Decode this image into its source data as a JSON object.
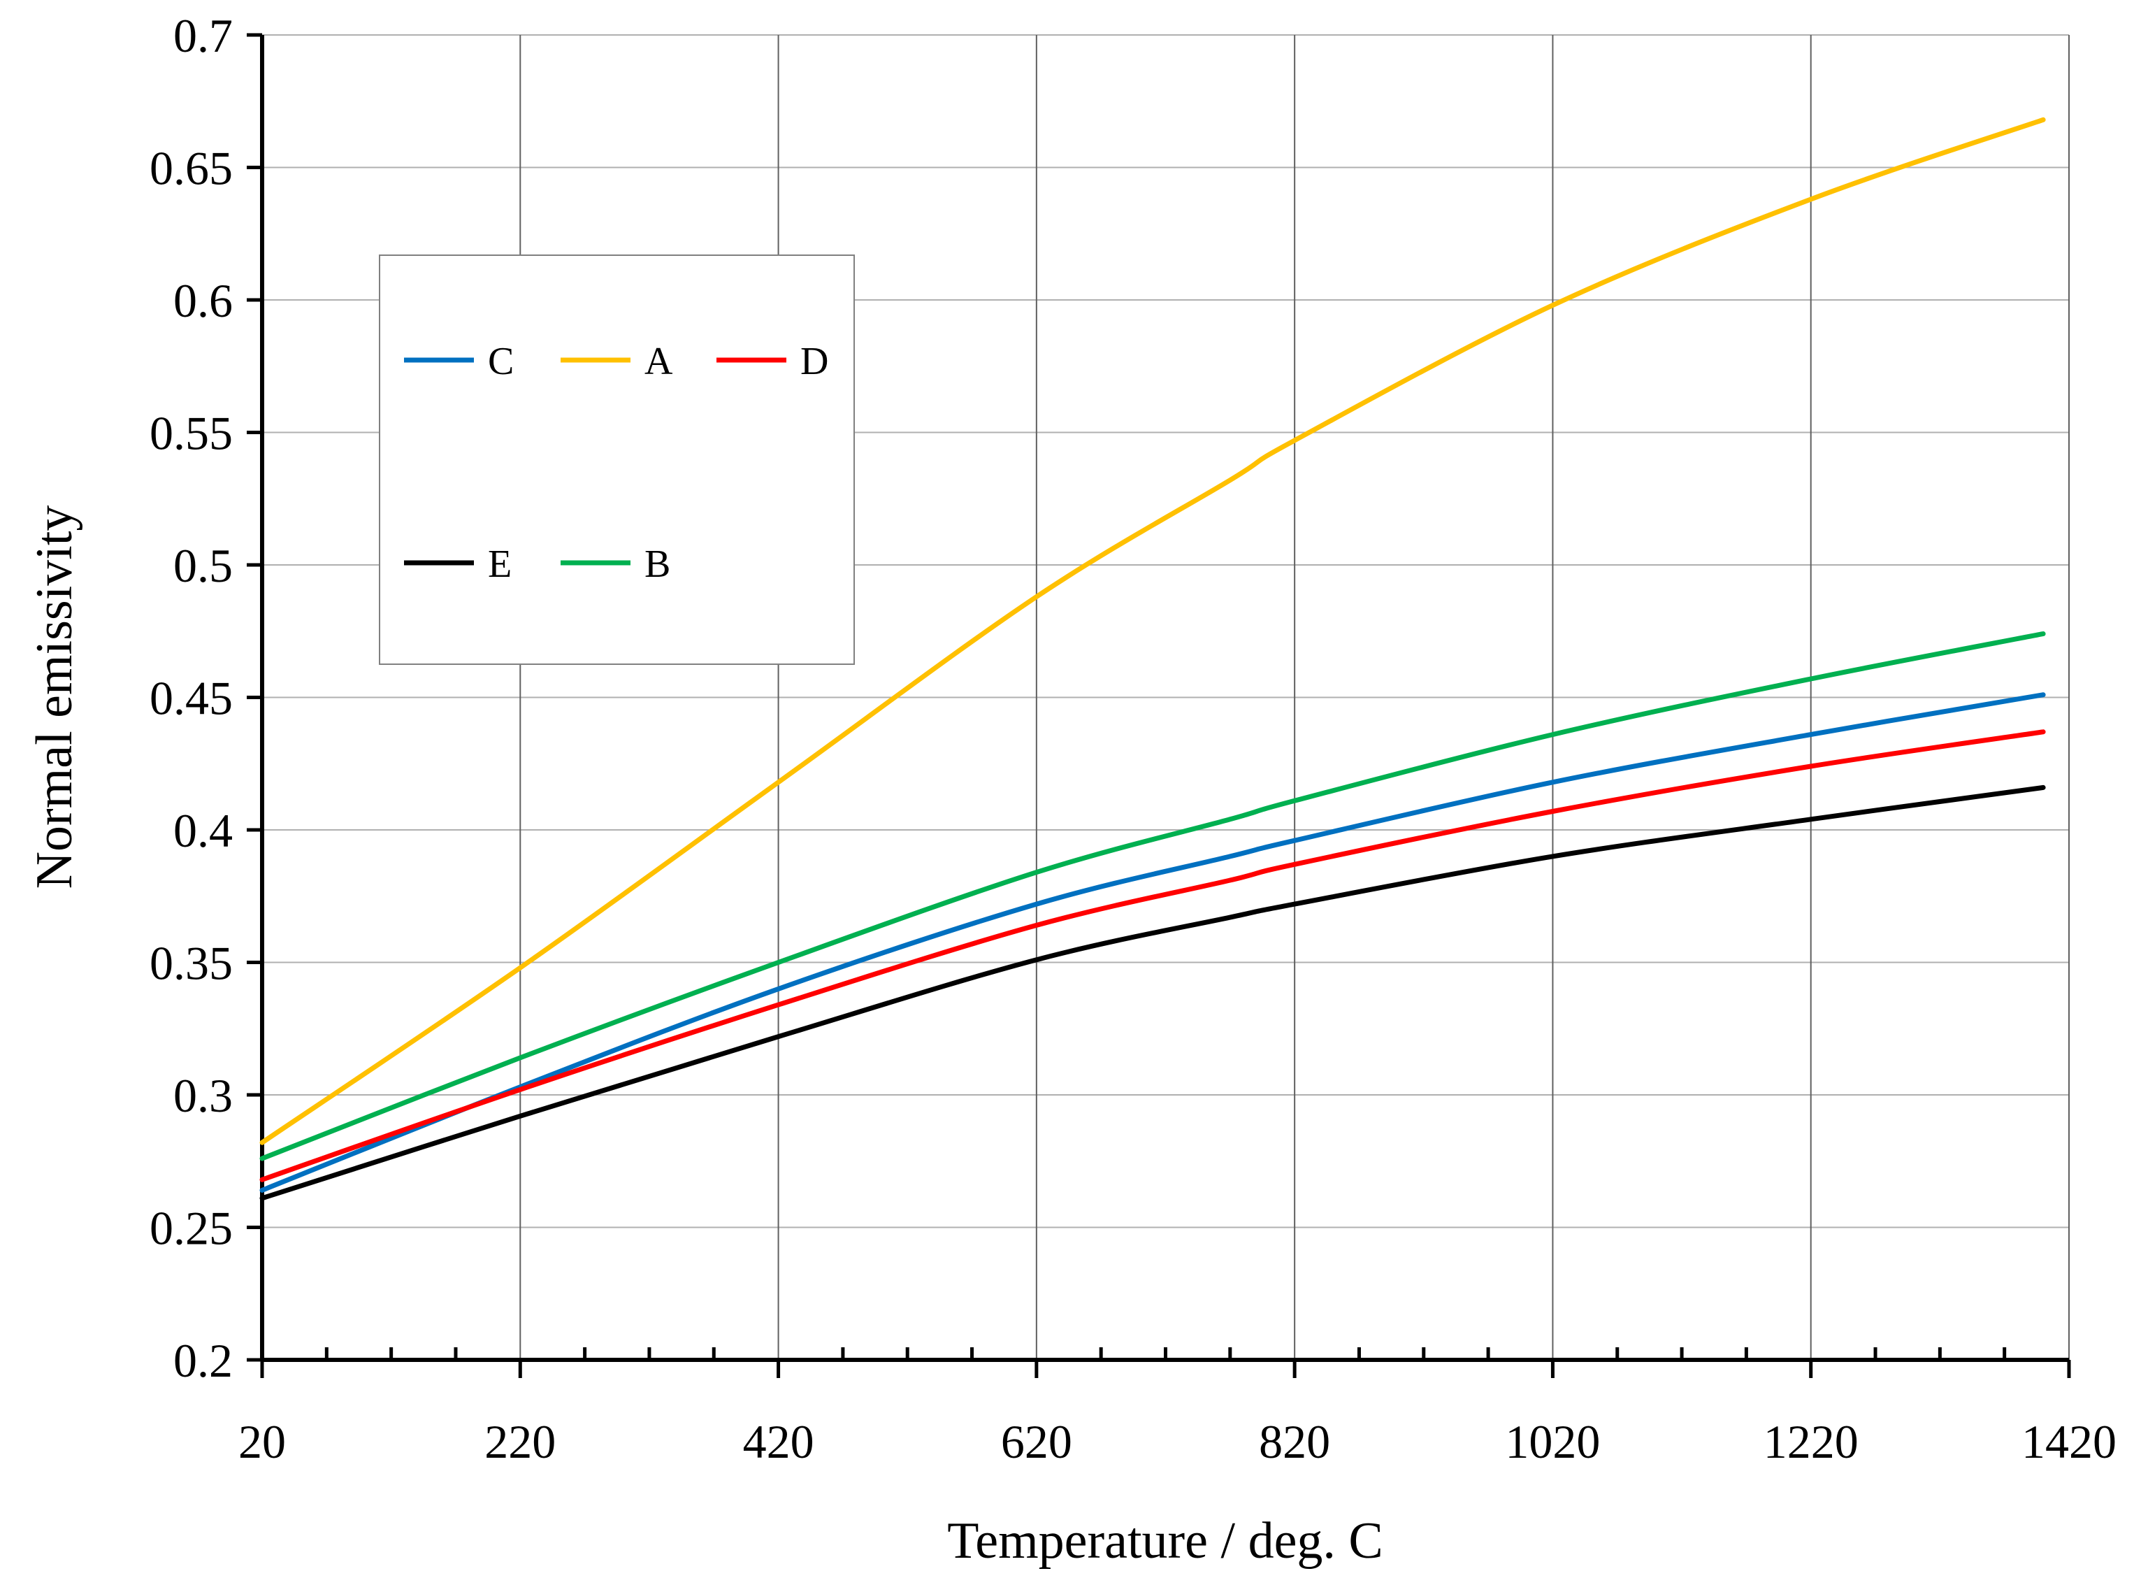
{
  "chart_data": {
    "type": "line",
    "xlabel": "Temperature / deg. C",
    "ylabel": "Normal emissivity",
    "xlim": [
      20,
      1420
    ],
    "ylim": [
      0.2,
      0.7
    ],
    "x_ticks": [
      20,
      220,
      420,
      620,
      820,
      1020,
      1220,
      1420
    ],
    "x_tick_labels": [
      "20",
      "220",
      "420",
      "620",
      "820",
      "1020",
      "1220",
      "1420"
    ],
    "y_ticks": [
      0.2,
      0.25,
      0.3,
      0.35,
      0.4,
      0.45,
      0.5,
      0.55,
      0.6,
      0.65,
      0.7
    ],
    "y_tick_labels": [
      "0.2",
      "0.25",
      "0.3",
      "0.35",
      "0.4",
      "0.45",
      "0.5",
      "0.55",
      "0.6",
      "0.65",
      "0.7"
    ],
    "grid": true,
    "legend_position": "upper-left",
    "x": [
      20,
      220,
      420,
      620,
      770,
      820,
      1020,
      1220,
      1400
    ],
    "series": [
      {
        "name": "C",
        "color": "#0070C0",
        "values": [
          0.264,
          0.303,
          0.34,
          0.372,
          0.39,
          0.396,
          0.418,
          0.436,
          0.451
        ]
      },
      {
        "name": "A",
        "color": "#FFC000",
        "values": [
          0.282,
          0.348,
          0.418,
          0.488,
          0.532,
          0.547,
          0.598,
          0.638,
          0.668
        ]
      },
      {
        "name": "D",
        "color": "#FF0000",
        "values": [
          0.268,
          0.302,
          0.334,
          0.364,
          0.381,
          0.387,
          0.407,
          0.424,
          0.437
        ]
      },
      {
        "name": "E",
        "color": "#000000",
        "values": [
          0.261,
          0.292,
          0.322,
          0.351,
          0.367,
          0.372,
          0.39,
          0.404,
          0.416
        ]
      },
      {
        "name": "B",
        "color": "#00B050",
        "values": [
          0.276,
          0.314,
          0.35,
          0.384,
          0.404,
          0.411,
          0.436,
          0.457,
          0.474
        ]
      }
    ],
    "legend_rows": [
      [
        "C",
        "A",
        "D"
      ],
      [
        "E",
        "B"
      ]
    ]
  }
}
